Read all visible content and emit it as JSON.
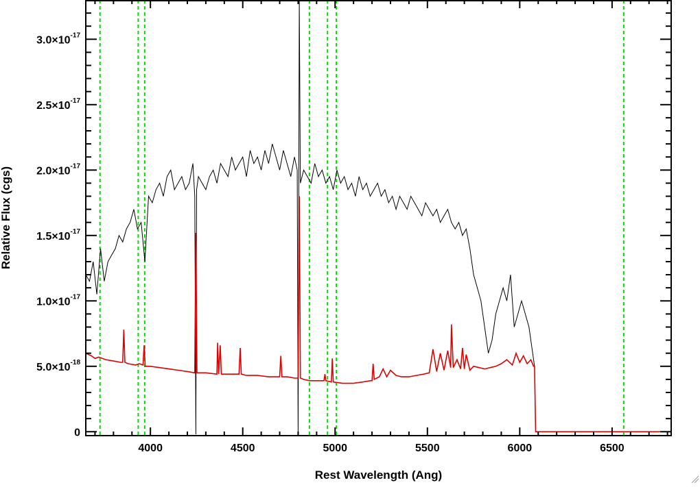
{
  "chart_data": {
    "type": "line",
    "title": "",
    "xlabel": "Rest Wavelength (Ang)",
    "ylabel": "Relative Flux (cgs)",
    "xlim": [
      3650,
      6820
    ],
    "ylim": [
      -3e-19,
      3.3e-17
    ],
    "x_ticks": [
      {
        "value": 4000,
        "label": "4000"
      },
      {
        "value": 4500,
        "label": "4500"
      },
      {
        "value": 5000,
        "label": "5000"
      },
      {
        "value": 5500,
        "label": "5500"
      },
      {
        "value": 6000,
        "label": "6000"
      },
      {
        "value": 6500,
        "label": "6500"
      }
    ],
    "y_ticks": [
      {
        "value": 0,
        "mantissa": "0",
        "exponent": ""
      },
      {
        "value": 5e-18,
        "mantissa": "5.0×10",
        "exponent": "-18"
      },
      {
        "value": 1e-17,
        "mantissa": "1.0×10",
        "exponent": "-17"
      },
      {
        "value": 1.5e-17,
        "mantissa": "1.5×10",
        "exponent": "-17"
      },
      {
        "value": 2e-17,
        "mantissa": "2.0×10",
        "exponent": "-17"
      },
      {
        "value": 2.5e-17,
        "mantissa": "2.5×10",
        "exponent": "-17"
      },
      {
        "value": 3e-17,
        "mantissa": "3.0×10",
        "exponent": "-17"
      }
    ],
    "grid": false,
    "legend": false,
    "vertical_lines": {
      "style": "dashed",
      "color": "#00dd00",
      "x": [
        3727,
        3934,
        3969,
        4861,
        4959,
        5007,
        6563
      ]
    },
    "series": [
      {
        "color": "#000000",
        "x": [
          3650,
          3670,
          3690,
          3710,
          3730,
          3750,
          3770,
          3790,
          3810,
          3830,
          3850,
          3870,
          3890,
          3910,
          3930,
          3950,
          3970,
          3990,
          4010,
          4030,
          4050,
          4070,
          4090,
          4110,
          4130,
          4150,
          4170,
          4190,
          4210,
          4230,
          4240,
          4246,
          4250,
          4260,
          4280,
          4300,
          4320,
          4340,
          4360,
          4380,
          4400,
          4420,
          4440,
          4460,
          4480,
          4500,
          4520,
          4540,
          4560,
          4580,
          4600,
          4620,
          4640,
          4660,
          4680,
          4700,
          4720,
          4740,
          4760,
          4780,
          4795,
          4800,
          4806,
          4812,
          4830,
          4850,
          4870,
          4890,
          4910,
          4930,
          4950,
          4970,
          4990,
          5010,
          5030,
          5050,
          5070,
          5090,
          5110,
          5130,
          5150,
          5170,
          5190,
          5210,
          5230,
          5250,
          5270,
          5290,
          5310,
          5330,
          5350,
          5370,
          5390,
          5410,
          5430,
          5450,
          5470,
          5490,
          5510,
          5530,
          5550,
          5570,
          5590,
          5610,
          5630,
          5650,
          5670,
          5690,
          5710,
          5730,
          5750,
          5770,
          5790,
          5810,
          5830,
          5850,
          5870,
          5890,
          5910,
          5930,
          5950,
          5970,
          5990,
          6010,
          6030,
          6050,
          6070,
          6080
        ],
        "values": [
          1.2e-17,
          1.15e-17,
          1.3e-17,
          1.05e-17,
          1.4e-17,
          1.15e-17,
          1.3e-17,
          1.35e-17,
          1.4e-17,
          1.5e-17,
          1.45e-17,
          1.55e-17,
          1.6e-17,
          1.7e-17,
          1.55e-17,
          1.6e-17,
          1.3e-17,
          1.8e-17,
          1.75e-17,
          1.85e-17,
          1.9e-17,
          1.8e-17,
          1.95e-17,
          2e-17,
          1.85e-17,
          1.9e-17,
          1.95e-17,
          1.85e-17,
          1.9e-17,
          2.05e-17,
          1.8e-17,
          -2e-19,
          1.85e-17,
          1.95e-17,
          1.9e-17,
          1.85e-17,
          1.95e-17,
          2e-17,
          1.9e-17,
          2.05e-17,
          2e-17,
          1.95e-17,
          2.1e-17,
          2e-17,
          2.05e-17,
          2.1e-17,
          1.95e-17,
          2.15e-17,
          2.05e-17,
          2.1e-17,
          2e-17,
          2.15e-17,
          2.05e-17,
          2.2e-17,
          2.1e-17,
          2e-17,
          2.15e-17,
          2.05e-17,
          1.95e-17,
          2.1e-17,
          2e-17,
          -2e-19,
          3.3e-17,
          1.9e-17,
          2e-17,
          1.95e-17,
          1.9e-17,
          2.05e-17,
          1.95e-17,
          2e-17,
          1.9e-17,
          1.95e-17,
          1.85e-17,
          2e-17,
          1.9e-17,
          1.95e-17,
          1.85e-17,
          1.9e-17,
          1.8e-17,
          1.95e-17,
          1.85e-17,
          1.9e-17,
          1.8e-17,
          1.85e-17,
          1.9e-17,
          1.8e-17,
          1.85e-17,
          1.75e-17,
          1.8e-17,
          1.7e-17,
          1.8e-17,
          1.75e-17,
          1.7e-17,
          1.8e-17,
          1.75e-17,
          1.7e-17,
          1.65e-17,
          1.75e-17,
          1.7e-17,
          1.65e-17,
          1.7e-17,
          1.6e-17,
          1.65e-17,
          1.7e-17,
          1.6e-17,
          1.55e-17,
          1.6e-17,
          1.5e-17,
          1.55e-17,
          1.4e-17,
          1.2e-17,
          1.1e-17,
          1e-17,
          8e-18,
          6e-18,
          7e-18,
          9e-18,
          1e-17,
          1.1e-17,
          1e-17,
          1.2e-17,
          8e-18,
          9e-18,
          1e-17,
          9e-18,
          8e-18,
          6e-18,
          5e-18
        ]
      },
      {
        "color": "#e00000",
        "x": [
          3650,
          3680,
          3700,
          3720,
          3760,
          3800,
          3840,
          3850,
          3856,
          3862,
          3880,
          3920,
          3940,
          3960,
          3966,
          3972,
          4000,
          4050,
          4100,
          4150,
          4200,
          4240,
          4246,
          4252,
          4300,
          4360,
          4364,
          4370,
          4378,
          4384,
          4392,
          4420,
          4470,
          4480,
          4486,
          4492,
          4520,
          4580,
          4640,
          4690,
          4700,
          4706,
          4712,
          4740,
          4780,
          4798,
          4800,
          4806,
          4812,
          4830,
          4860,
          4900,
          4940,
          4945,
          4950,
          4980,
          4985,
          4990,
          5040,
          5100,
          5150,
          5190,
          5200,
          5206,
          5212,
          5240,
          5260,
          5280,
          5300,
          5330,
          5360,
          5400,
          5440,
          5480,
          5510,
          5530,
          5550,
          5570,
          5590,
          5610,
          5626,
          5630,
          5640,
          5660,
          5680,
          5690,
          5700,
          5710,
          5730,
          5750,
          5780,
          5810,
          5840,
          5870,
          5900,
          5930,
          5960,
          5980,
          6000,
          6020,
          6040,
          6060,
          6075,
          6080,
          6086,
          6100,
          6300,
          6500,
          6820
        ],
        "values": [
          6e-18,
          5.8e-18,
          5.6e-18,
          5.7e-18,
          5.5e-18,
          5.4e-18,
          5.3e-18,
          5.3e-18,
          7.8e-18,
          5.3e-18,
          5.2e-18,
          5.1e-18,
          5.2e-18,
          5.1e-18,
          6.6e-18,
          5e-18,
          5e-18,
          4.9e-18,
          4.8e-18,
          4.7e-18,
          4.6e-18,
          4.5e-18,
          1.52e-17,
          4.5e-18,
          4.5e-18,
          4.4e-18,
          6.8e-18,
          4.4e-18,
          6.6e-18,
          4.4e-18,
          4.4e-18,
          4.4e-18,
          4.4e-18,
          4.4e-18,
          6.4e-18,
          4.4e-18,
          4.3e-18,
          4.3e-18,
          4.2e-18,
          4.2e-18,
          4.2e-18,
          5.8e-18,
          4.2e-18,
          4.2e-18,
          4.1e-18,
          4.1e-18,
          4.1e-18,
          1.8e-17,
          4.1e-18,
          4e-18,
          3.9e-18,
          3.9e-18,
          3.9e-18,
          4.4e-18,
          3.9e-18,
          3.8e-18,
          5.6e-18,
          3.8e-18,
          3.7e-18,
          3.7e-18,
          3.8e-18,
          3.9e-18,
          3.9e-18,
          5.2e-18,
          4e-18,
          4.2e-18,
          4.8e-18,
          4.2e-18,
          4.7e-18,
          4.3e-18,
          4.2e-18,
          4.2e-18,
          4.3e-18,
          4.4e-18,
          4.5e-18,
          6.3e-18,
          4.6e-18,
          6e-18,
          4.7e-18,
          6.2e-18,
          4.9e-18,
          8.2e-18,
          4.9e-18,
          5.5e-18,
          4.8e-18,
          6.4e-18,
          4.8e-18,
          5.9e-18,
          4.7e-18,
          5e-18,
          4.9e-18,
          4.8e-18,
          4.9e-18,
          5e-18,
          5.2e-18,
          5.5e-18,
          5.1e-18,
          6e-18,
          5.3e-18,
          5.8e-18,
          5.2e-18,
          5.5e-18,
          5e-18,
          5e-18,
          0.0,
          0.0,
          0.0,
          0.0,
          0.0
        ]
      }
    ]
  }
}
